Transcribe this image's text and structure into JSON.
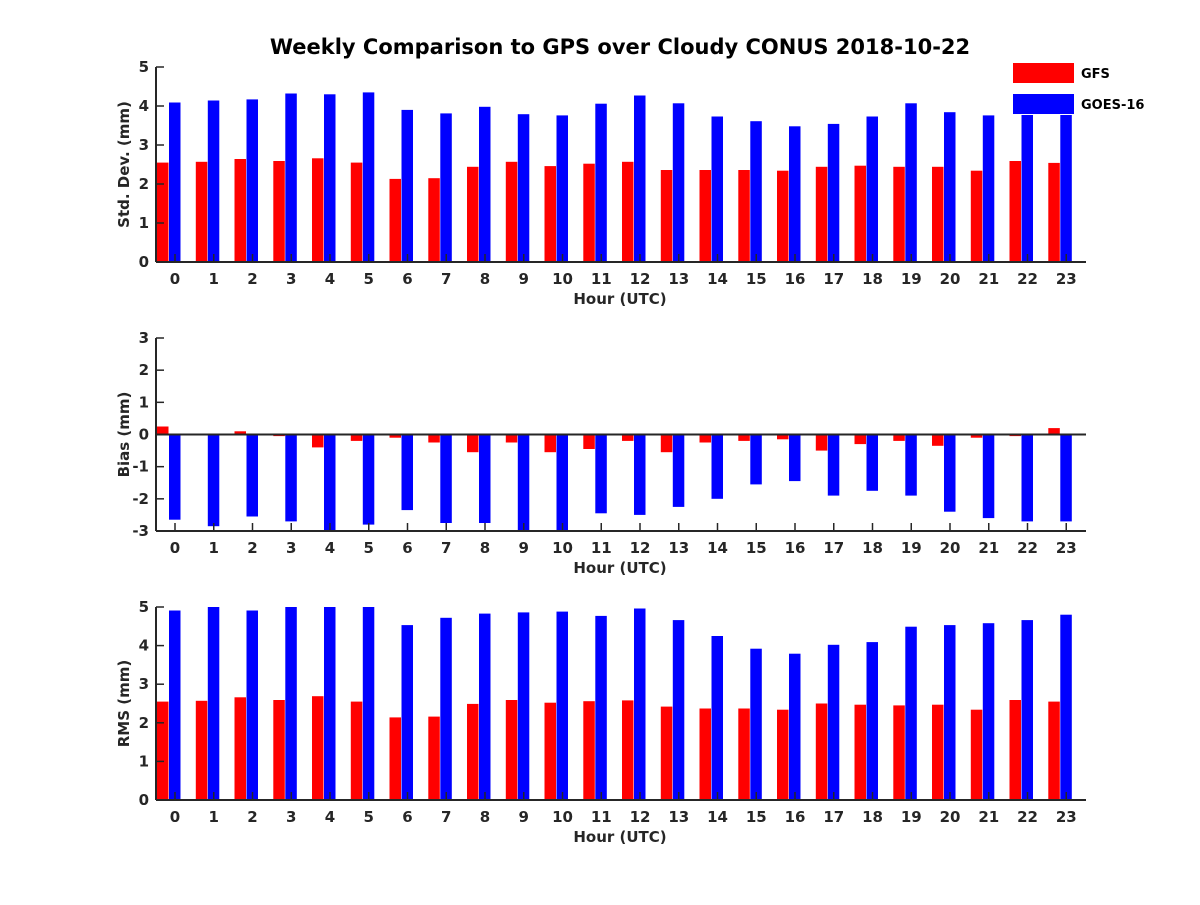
{
  "chart_data": {
    "title": "Weekly Comparison to GPS over Cloudy CONUS 2018-10-22",
    "legend": {
      "placement": "top-right",
      "entries": [
        {
          "name": "GFS",
          "color": "#ff0000"
        },
        {
          "name": "GOES-16",
          "color": "#0000ff"
        }
      ]
    },
    "charts": [
      {
        "type": "bar",
        "xlabel": "Hour (UTC)",
        "ylabel": "Std. Dev. (mm)",
        "ylim": [
          0,
          5
        ],
        "yticks": [
          0,
          1,
          2,
          3,
          4,
          5
        ],
        "categories": [
          "0",
          "1",
          "2",
          "3",
          "4",
          "5",
          "6",
          "7",
          "8",
          "9",
          "10",
          "11",
          "12",
          "13",
          "14",
          "15",
          "16",
          "17",
          "18",
          "19",
          "20",
          "21",
          "22",
          "23"
        ],
        "series": [
          {
            "name": "GFS",
            "color": "#ff0000",
            "values": [
              2.55,
              2.57,
              2.64,
              2.59,
              2.66,
              2.55,
              2.13,
              2.15,
              2.44,
              2.57,
              2.46,
              2.52,
              2.57,
              2.36,
              2.36,
              2.36,
              2.34,
              2.44,
              2.47,
              2.44,
              2.44,
              2.34,
              2.59,
              2.54
            ]
          },
          {
            "name": "GOES-16",
            "color": "#0000ff",
            "values": [
              4.09,
              4.14,
              4.17,
              4.32,
              4.3,
              4.35,
              3.9,
              3.81,
              3.98,
              3.79,
              3.76,
              4.06,
              4.27,
              4.07,
              3.73,
              3.61,
              3.48,
              3.54,
              3.73,
              4.07,
              3.84,
              3.76,
              3.77,
              3.77
            ]
          }
        ]
      },
      {
        "type": "bar",
        "xlabel": "Hour (UTC)",
        "ylabel": "Bias (mm)",
        "ylim": [
          -3,
          3
        ],
        "yticks": [
          -3,
          -2,
          -1,
          0,
          1,
          2,
          3
        ],
        "categories": [
          "0",
          "1",
          "2",
          "3",
          "4",
          "5",
          "6",
          "7",
          "8",
          "9",
          "10",
          "11",
          "12",
          "13",
          "14",
          "15",
          "16",
          "17",
          "18",
          "19",
          "20",
          "21",
          "22",
          "23"
        ],
        "series": [
          {
            "name": "GFS",
            "color": "#ff0000",
            "values": [
              0.25,
              0.0,
              0.1,
              -0.05,
              -0.4,
              -0.2,
              -0.1,
              -0.25,
              -0.55,
              -0.25,
              -0.55,
              -0.45,
              -0.2,
              -0.55,
              -0.25,
              -0.2,
              -0.15,
              -0.5,
              -0.3,
              -0.2,
              -0.35,
              -0.1,
              -0.05,
              0.2
            ]
          },
          {
            "name": "GOES-16",
            "color": "#0000ff",
            "values": [
              -2.65,
              -2.85,
              -2.55,
              -2.7,
              -3.0,
              -2.8,
              -2.35,
              -2.75,
              -2.75,
              -3.0,
              -3.0,
              -2.45,
              -2.5,
              -2.25,
              -2.0,
              -1.55,
              -1.45,
              -1.9,
              -1.75,
              -1.9,
              -2.4,
              -2.6,
              -2.7,
              -2.7
            ]
          }
        ]
      },
      {
        "type": "bar",
        "xlabel": "Hour (UTC)",
        "ylabel": "RMS (mm)",
        "ylim": [
          0,
          5
        ],
        "yticks": [
          0,
          1,
          2,
          3,
          4,
          5
        ],
        "categories": [
          "0",
          "1",
          "2",
          "3",
          "4",
          "5",
          "6",
          "7",
          "8",
          "9",
          "10",
          "11",
          "12",
          "13",
          "14",
          "15",
          "16",
          "17",
          "18",
          "19",
          "20",
          "21",
          "22",
          "23"
        ],
        "series": [
          {
            "name": "GFS",
            "color": "#ff0000",
            "values": [
              2.55,
              2.57,
              2.66,
              2.59,
              2.69,
              2.55,
              2.14,
              2.16,
              2.49,
              2.59,
              2.52,
              2.56,
              2.58,
              2.42,
              2.37,
              2.37,
              2.34,
              2.5,
              2.47,
              2.45,
              2.47,
              2.34,
              2.59,
              2.55
            ]
          },
          {
            "name": "GOES-16",
            "color": "#0000ff",
            "values": [
              4.91,
              5.0,
              4.91,
              5.0,
              5.0,
              5.0,
              4.53,
              4.72,
              4.83,
              4.86,
              4.88,
              4.77,
              4.96,
              4.66,
              4.25,
              3.92,
              3.79,
              4.02,
              4.09,
              4.49,
              4.53,
              4.58,
              4.66,
              4.8
            ]
          }
        ]
      }
    ]
  }
}
